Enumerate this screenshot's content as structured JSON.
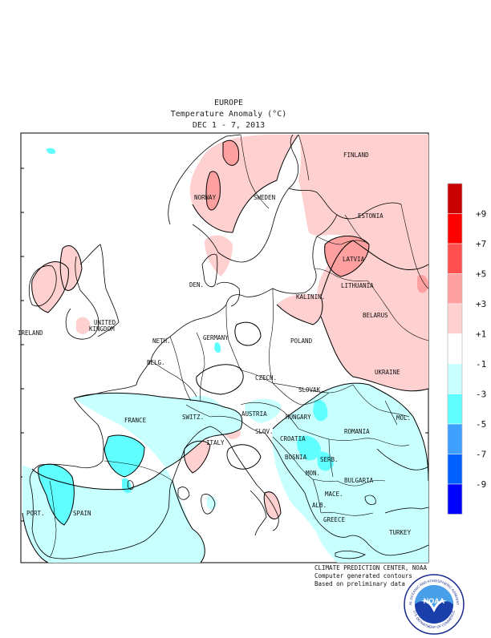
{
  "title": {
    "region": "EUROPE",
    "variable": "Temperature Anomaly (°C)",
    "period": "DEC 1 - 7, 2013"
  },
  "credits": {
    "line1": "CLIMATE PREDICTION CENTER, NOAA",
    "line2": "Computer generated contours",
    "line3": "Based on preliminary data"
  },
  "logo": {
    "text": "NOAA",
    "ring_top": "NATIONAL OCEANIC AND ATMOSPHERIC ADMINISTRATION",
    "ring_bottom": "U.S. DEPARTMENT OF COMMERCE",
    "icon": "noaa-seagull-emblem"
  },
  "legend": {
    "bins": [
      {
        "color": "#c80000",
        "label": "+9"
      },
      {
        "color": "#ff0000",
        "label": "+7"
      },
      {
        "color": "#ff5050",
        "label": "+5"
      },
      {
        "color": "#ffa0a0",
        "label": "+3"
      },
      {
        "color": "#ffd0d0",
        "label": "+1"
      },
      {
        "color": "#ffffff",
        "label": "-1"
      },
      {
        "color": "#c8ffff",
        "label": "-3"
      },
      {
        "color": "#60ffff",
        "label": "-5"
      },
      {
        "color": "#40a0ff",
        "label": "-7"
      },
      {
        "color": "#0060ff",
        "label": "-9"
      },
      {
        "color": "#0000ff",
        "label": ""
      }
    ]
  },
  "countries": [
    "FINLAND",
    "NORWAY",
    "SWEDEN",
    "ESTONIA",
    "LATVIA",
    "DEN.",
    "LITHUANIA",
    "KALININ.",
    "BELARUS",
    "IRELAND",
    "UNITED",
    "KINGDOM",
    "NETH.",
    "GERMANY",
    "POLAND",
    "BELG.",
    "CZECH.",
    "UKRAINE",
    "SLOVAK.",
    "FRANCE",
    "SWITZ.",
    "AUSTRIA",
    "HUNGARY",
    "MOL.",
    "ROMANIA",
    "SLOV.",
    "CROATIA",
    "ITALY",
    "BOSNIA",
    "SERB.",
    "MON.",
    "BULGARIA",
    "PORT.",
    "SPAIN",
    "MACE.",
    "ALB.",
    "GREECE",
    "TURKEY"
  ]
}
